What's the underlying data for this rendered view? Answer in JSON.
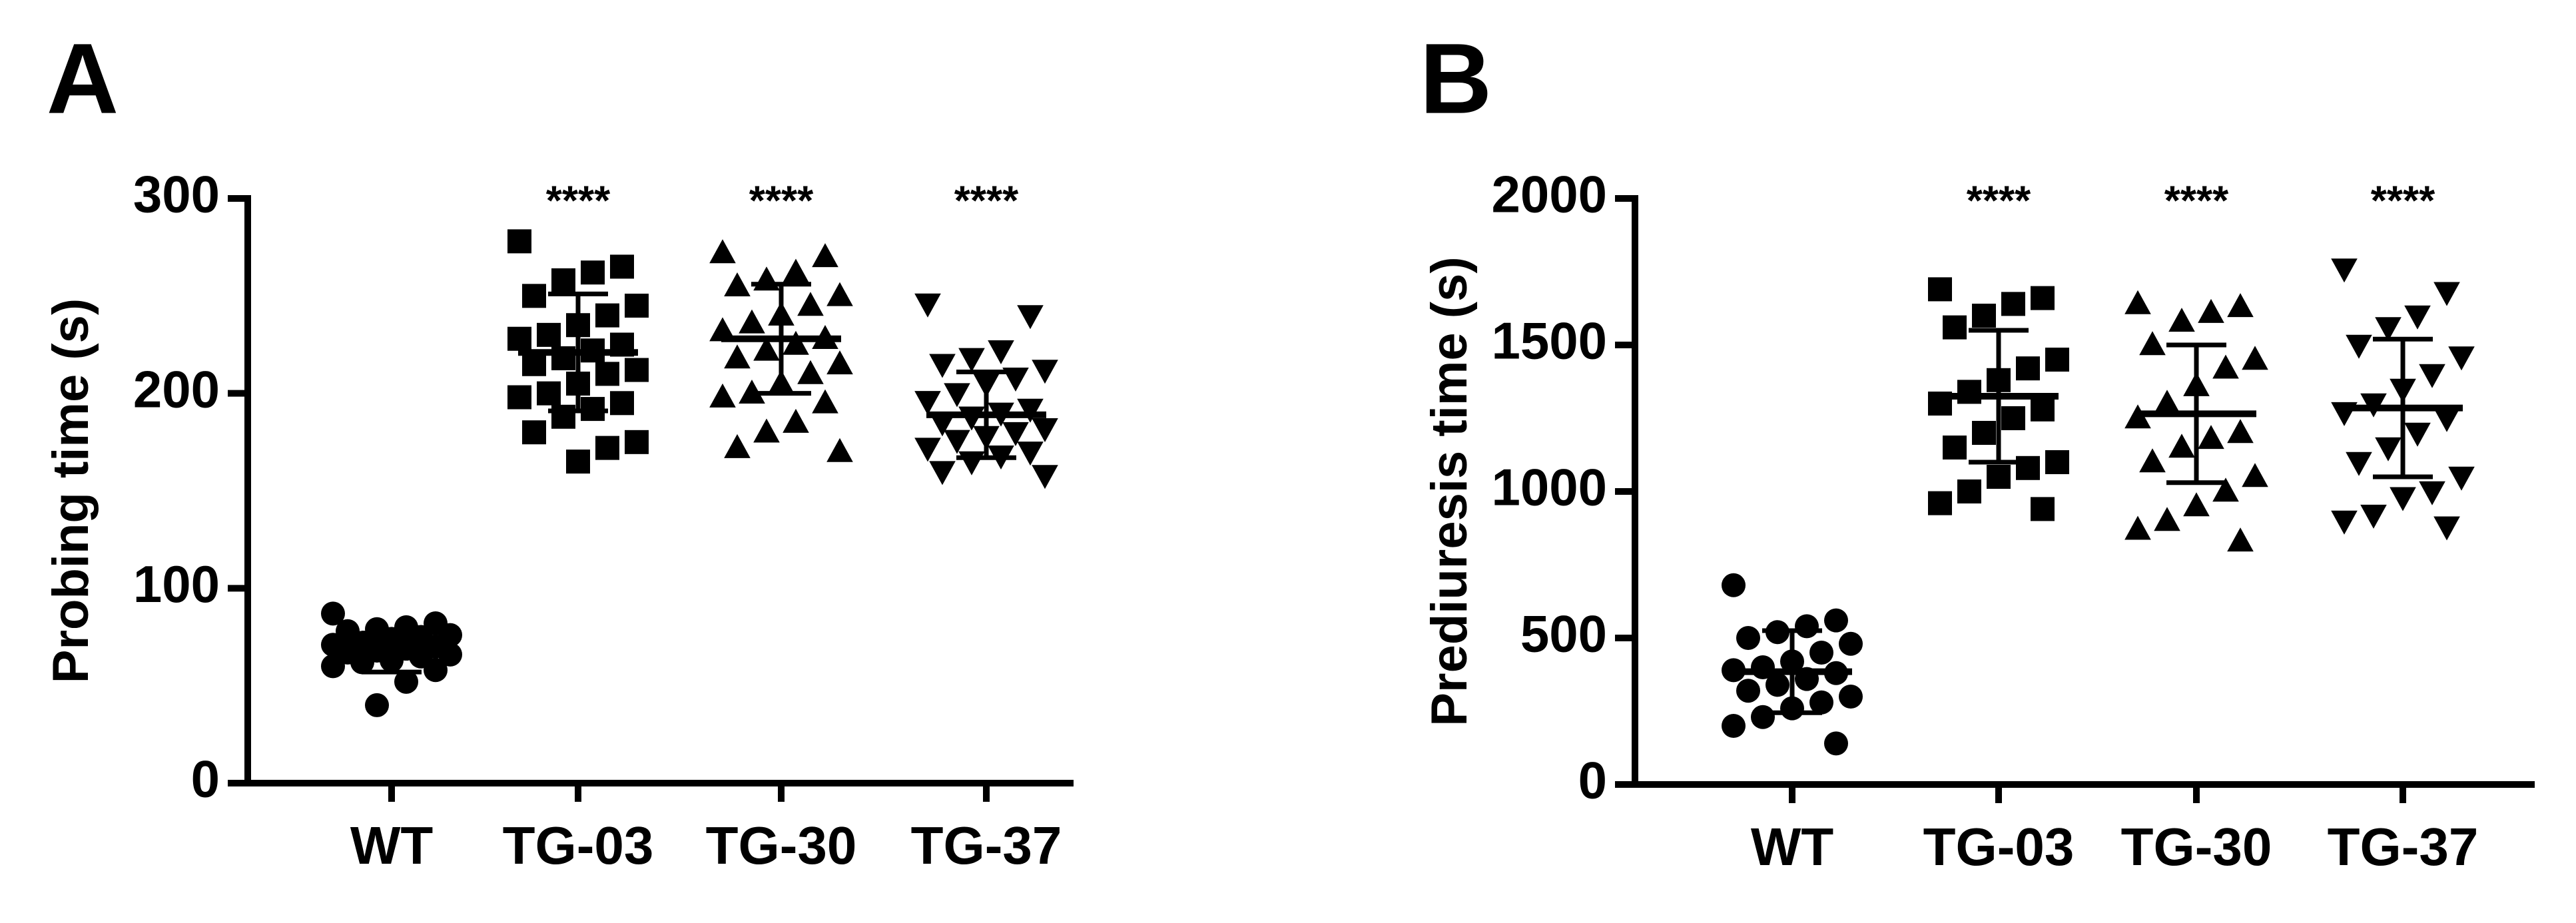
{
  "chart_data": [
    {
      "type": "dotplot",
      "panel": "A",
      "ylabel": "Probing time (s)",
      "categories": [
        "WT",
        "TG-03",
        "TG-30",
        "TG-37"
      ],
      "markers": [
        "circle",
        "square",
        "triangle-up",
        "triangle-down"
      ],
      "color": "#000000",
      "values": [
        [
          87,
          82,
          80,
          79,
          78,
          76,
          75,
          74,
          72,
          71,
          70,
          69,
          68,
          67,
          66,
          65,
          63,
          62,
          60,
          58,
          52,
          40
        ],
        [
          278,
          265,
          262,
          258,
          250,
          245,
          240,
          235,
          230,
          228,
          225,
          222,
          218,
          215,
          212,
          210,
          205,
          200,
          198,
          195,
          192,
          188,
          180,
          175,
          172,
          165
        ],
        [
          272,
          270,
          262,
          258,
          255,
          250,
          245,
          240,
          236,
          232,
          228,
          225,
          222,
          218,
          215,
          210,
          205,
          200,
          198,
          195,
          185,
          180,
          172,
          170
        ],
        [
          246,
          240,
          222,
          218,
          215,
          212,
          208,
          205,
          200,
          196,
          192,
          190,
          188,
          185,
          182,
          180,
          178,
          176,
          172,
          170,
          168,
          165,
          160,
          158
        ]
      ],
      "means": [
        67,
        221,
        228,
        189
      ],
      "sds": [
        10,
        30,
        28,
        22
      ],
      "annotations": [
        null,
        "****",
        "****",
        "****"
      ],
      "ylim": [
        0,
        300
      ],
      "yticks": [
        0,
        100,
        200,
        300
      ]
    },
    {
      "type": "dotplot",
      "panel": "B",
      "ylabel": "Prediuresis time (s)",
      "categories": [
        "WT",
        "TG-03",
        "TG-30",
        "TG-37"
      ],
      "markers": [
        "circle",
        "square",
        "triangle-up",
        "triangle-down"
      ],
      "color": "#000000",
      "values": [
        [
          680,
          560,
          540,
          520,
          500,
          480,
          450,
          420,
          400,
          390,
          380,
          360,
          340,
          320,
          300,
          280,
          260,
          230,
          200,
          140
        ],
        [
          1690,
          1660,
          1640,
          1600,
          1560,
          1450,
          1420,
          1380,
          1340,
          1300,
          1280,
          1250,
          1200,
          1150,
          1100,
          1080,
          1050,
          1000,
          960,
          940
        ],
        [
          1640,
          1630,
          1610,
          1580,
          1500,
          1450,
          1420,
          1360,
          1300,
          1250,
          1200,
          1180,
          1150,
          1100,
          1050,
          1000,
          950,
          900,
          870,
          830
        ],
        [
          1760,
          1680,
          1600,
          1560,
          1500,
          1460,
          1400,
          1350,
          1300,
          1270,
          1250,
          1200,
          1150,
          1100,
          1050,
          1000,
          980,
          920,
          900,
          880
        ]
      ],
      "means": [
        385,
        1325,
        1265,
        1285
      ],
      "sds": [
        140,
        225,
        235,
        235
      ],
      "annotations": [
        null,
        "****",
        "****",
        "****"
      ],
      "ylim": [
        0,
        2000
      ],
      "yticks": [
        0,
        500,
        1000,
        1500,
        2000
      ]
    }
  ]
}
